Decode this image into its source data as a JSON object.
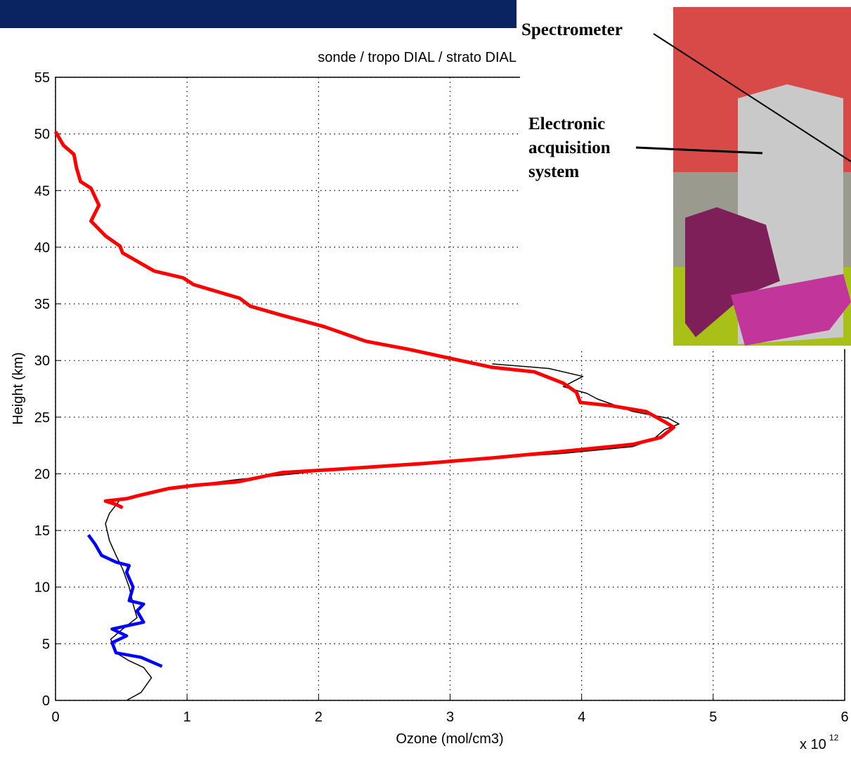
{
  "chart_data": {
    "type": "line",
    "title": "sonde / tropo DIAL / strato DIAL",
    "x_label": "Ozone (mol/cm3)",
    "y_label": "Height (km)",
    "x_scale_label": "x 10",
    "x_scale_exponent": "12",
    "xlim": [
      0,
      6
    ],
    "ylim": [
      0,
      55
    ],
    "xticks": [
      0,
      1,
      2,
      3,
      4,
      5,
      6
    ],
    "yticks": [
      0,
      5,
      10,
      15,
      20,
      25,
      30,
      35,
      40,
      45,
      50,
      55
    ],
    "grid": true,
    "inset_labels": [
      "Spectrometer",
      "Electronic",
      "acquisition",
      "system"
    ],
    "series": [
      {
        "name": "sonde",
        "color": "#000000",
        "x": [
          0.54,
          0.65,
          0.73,
          0.67,
          0.56,
          0.46,
          0.42,
          0.51,
          0.62,
          0.59,
          0.56,
          0.51,
          0.46,
          0.41,
          0.38,
          0.41,
          0.49,
          0.64,
          0.97,
          1.39,
          1.98,
          2.79,
          3.32,
          3.86,
          4.39,
          4.55,
          4.63,
          4.74,
          4.66,
          4.39,
          4.12,
          4.04,
          3.86,
          4.01,
          3.75,
          3.32
        ],
        "y": [
          0,
          0.7,
          2,
          2.9,
          3.5,
          4.2,
          5.4,
          6.3,
          7.3,
          8.5,
          10,
          11.6,
          12.8,
          14.1,
          15.6,
          16.5,
          17.7,
          18.2,
          18.9,
          19.5,
          20.2,
          20.9,
          21.4,
          21.8,
          22.4,
          23.1,
          23.9,
          24.4,
          24.9,
          25.5,
          26.6,
          27.1,
          27.7,
          28.6,
          29.3,
          29.7
        ]
      },
      {
        "name": "tropo DIAL",
        "color": "#0000ff",
        "x": [
          0.81,
          0.65,
          0.46,
          0.43,
          0.54,
          0.43,
          0.67,
          0.62,
          0.67,
          0.56,
          0.59,
          0.54,
          0.56,
          0.46,
          0.35,
          0.3,
          0.25
        ],
        "y": [
          3.0,
          3.8,
          4.2,
          5.1,
          5.7,
          6.3,
          6.9,
          7.9,
          8.5,
          8.8,
          10,
          11.3,
          11.9,
          12.2,
          12.8,
          13.8,
          14.6
        ]
      },
      {
        "name": "strato DIAL",
        "color": "#ff0000",
        "x": [
          0,
          0.06,
          0.14,
          0.16,
          0.19,
          0.27,
          0.33,
          0.27,
          0.38,
          0.49,
          0.51,
          0.75,
          0.97,
          1.05,
          1.4,
          1.48,
          1.72,
          2.04,
          2.36,
          2.68,
          3.0,
          3.32,
          3.64,
          3.86,
          3.96,
          3.99,
          4.23,
          4.49,
          4.63,
          4.7,
          4.6,
          4.39,
          3.96,
          3.32,
          2.79,
          2.14,
          1.72,
          1.39,
          1.07,
          0.86,
          0.64,
          0.54,
          0.38,
          0.46,
          0.51
        ],
        "y": [
          50.2,
          49,
          48.2,
          47,
          45.8,
          45.2,
          43.7,
          42.3,
          41,
          40.1,
          39.5,
          37.9,
          37.3,
          36.7,
          35.5,
          34.8,
          34.0,
          33.0,
          31.7,
          31.0,
          30.2,
          29.4,
          29.0,
          28.0,
          27.2,
          26.3,
          26.0,
          25.5,
          24.6,
          24.1,
          23.2,
          22.6,
          22.1,
          21.4,
          20.9,
          20.4,
          20.1,
          19.3,
          19.0,
          18.7,
          18.1,
          17.8,
          17.6,
          17.3,
          17.0
        ]
      }
    ]
  }
}
